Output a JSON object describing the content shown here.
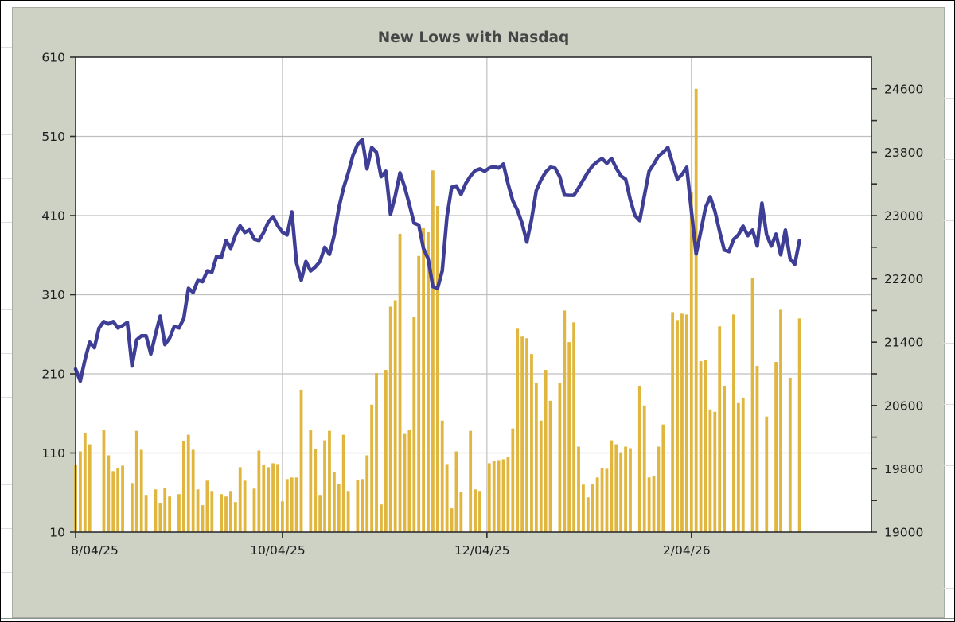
{
  "chart_data": {
    "type": "bar+line",
    "title": "New Lows with Nasdaq",
    "grid": true,
    "legend_position": "none",
    "x_tick_labels": [
      "8/04/25",
      "10/04/25",
      "12/04/25",
      "2/04/26"
    ],
    "x_tick_days": [
      0,
      44,
      87.5,
      131
    ],
    "days_span": 169.3,
    "left_axis": {
      "min": 10,
      "max": 610,
      "tick_step": 100,
      "tick_labels": [
        "610",
        "510",
        "410",
        "310",
        "210",
        "110",
        "10"
      ],
      "tick_values": [
        610,
        510,
        410,
        310,
        210,
        110,
        10
      ],
      "gridline_values": [
        110,
        210,
        310,
        410,
        510
      ]
    },
    "right_axis": {
      "min": 19000,
      "max": 25000,
      "label_step": 800,
      "minor_tick_step": 400,
      "tick_labels": [
        "24600",
        "23800",
        "23000",
        "22200",
        "21400",
        "20600",
        "19800",
        "19000"
      ],
      "tick_values": [
        24600,
        23800,
        23000,
        22200,
        21400,
        20600,
        19800,
        19000
      ]
    },
    "series": [
      {
        "name": "New Lows",
        "type": "bar",
        "axis": "left",
        "color": "#e0b63e",
        "values": [
          95,
          112,
          135,
          121,
          0,
          0,
          139,
          107,
          87,
          91,
          94,
          0,
          72,
          138,
          114,
          57,
          0,
          64,
          47,
          66,
          55,
          0,
          58,
          125,
          133,
          114,
          64,
          44,
          75,
          62,
          0,
          58,
          55,
          62,
          48,
          92,
          75,
          0,
          65,
          113,
          95,
          92,
          97,
          96,
          49,
          77,
          79,
          79,
          190,
          0,
          139,
          115,
          57,
          126,
          138,
          86,
          71,
          133,
          62,
          0,
          76,
          77,
          107,
          171,
          211,
          45,
          215,
          295,
          303,
          387,
          134,
          139,
          282,
          359,
          394,
          389,
          467,
          422,
          151,
          96,
          40,
          112,
          61,
          0,
          138,
          64,
          62,
          0,
          97,
          100,
          101,
          102,
          105,
          141,
          267,
          257,
          255,
          235,
          198,
          151,
          215,
          176,
          0,
          198,
          290,
          250,
          275,
          118,
          70,
          54,
          71,
          79,
          91,
          90,
          126,
          121,
          111,
          118,
          116,
          0,
          195,
          170,
          79,
          81,
          118,
          146,
          0,
          288,
          278,
          286,
          285,
          439,
          570,
          226,
          228,
          165,
          162,
          270,
          195,
          0,
          285,
          173,
          180,
          0,
          331,
          220,
          0,
          156,
          0,
          225,
          291,
          0,
          205,
          0,
          280
        ]
      },
      {
        "name": "Nasdaq",
        "type": "line",
        "axis": "right",
        "color": "#3e3e96",
        "values": [
          21060,
          20910,
          21180,
          21400,
          21330,
          21580,
          21660,
          21630,
          21660,
          21580,
          21610,
          21650,
          21100,
          21430,
          21480,
          21480,
          21250,
          21500,
          21730,
          21370,
          21450,
          21600,
          21580,
          21700,
          22080,
          22030,
          22180,
          22165,
          22300,
          22285,
          22485,
          22468,
          22685,
          22585,
          22752,
          22870,
          22786,
          22820,
          22702,
          22685,
          22786,
          22920,
          22987,
          22870,
          22790,
          22755,
          23046,
          22400,
          22183,
          22420,
          22300,
          22350,
          22420,
          22600,
          22510,
          22750,
          23100,
          23350,
          23540,
          23760,
          23900,
          23960,
          23590,
          23860,
          23800,
          23490,
          23560,
          23015,
          23250,
          23540,
          23360,
          23140,
          22905,
          22880,
          22585,
          22454,
          22103,
          22080,
          22300,
          22985,
          23357,
          23374,
          23267,
          23407,
          23500,
          23568,
          23590,
          23560,
          23600,
          23620,
          23600,
          23650,
          23400,
          23187,
          23067,
          22900,
          22665,
          22950,
          23318,
          23450,
          23550,
          23610,
          23600,
          23490,
          23258,
          23255,
          23255,
          23350,
          23450,
          23550,
          23630,
          23680,
          23720,
          23660,
          23720,
          23600,
          23500,
          23460,
          23200,
          23000,
          22936,
          23250,
          23560,
          23650,
          23750,
          23800,
          23860,
          23660,
          23460,
          23520,
          23610,
          23057,
          22515,
          22800,
          23100,
          23237,
          23057,
          22800,
          22565,
          22545,
          22700,
          22756,
          22867,
          22746,
          22817,
          22615,
          23157,
          22756,
          22615,
          22766,
          22505,
          22817,
          22454,
          22384,
          22685
        ]
      }
    ]
  },
  "colors": {
    "frame_bg": "#cdd2c5",
    "plot_bg": "#ffffff",
    "gridline": "#bfbfbf",
    "plot_border": "#2e2e2e",
    "tick": "#2e2e2e",
    "label_text": "#1c1c1c",
    "title_text": "#464646"
  }
}
